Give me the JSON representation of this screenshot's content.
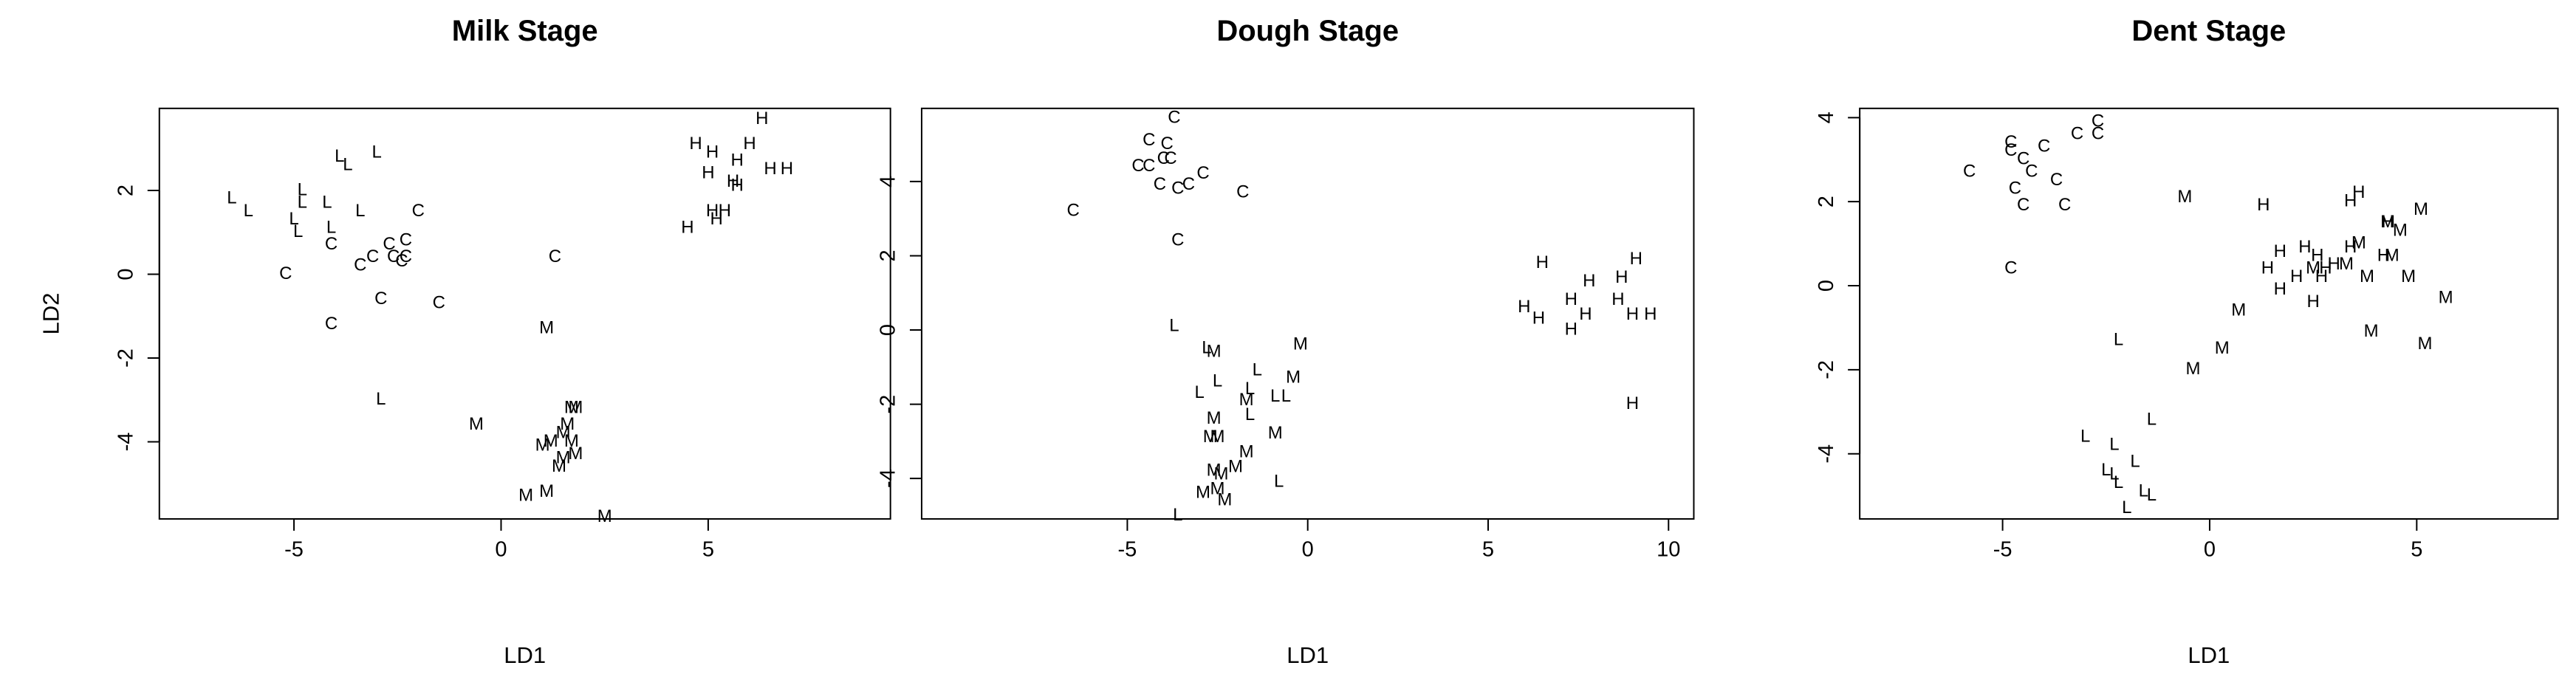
{
  "chart_data": [
    {
      "type": "scatter",
      "title": "Milk Stage",
      "xlabel": "LD1",
      "ylabel": "LD2",
      "xlim": [
        -8.25,
        9.4
      ],
      "ylim": [
        -5.84,
        3.96
      ],
      "xticks": [
        -5,
        0,
        5
      ],
      "yticks": [
        -4,
        -2,
        0,
        2
      ],
      "series": [
        {
          "name": "L",
          "color": "#000000",
          "x": [
            -6.5,
            -6.1,
            -4.8,
            -4.8,
            -5.0,
            -4.9,
            -4.2,
            -4.1,
            -3.9,
            -3.7,
            -3.4,
            -3.0,
            -2.9
          ],
          "y": [
            1.8,
            1.5,
            2.0,
            1.7,
            1.3,
            1.0,
            1.7,
            1.1,
            2.8,
            2.6,
            1.5,
            2.9,
            -3.0
          ]
        },
        {
          "name": "C",
          "color": "#000000",
          "x": [
            -5.2,
            -4.1,
            -4.1,
            -3.4,
            -3.1,
            -2.7,
            -2.6,
            -2.4,
            -2.3,
            -2.3,
            -2.0,
            -2.9,
            -1.5,
            1.3
          ],
          "y": [
            0.0,
            -1.2,
            0.7,
            0.2,
            0.4,
            0.7,
            0.4,
            0.3,
            0.8,
            0.4,
            1.5,
            -0.6,
            -0.7,
            0.4
          ]
        },
        {
          "name": "H",
          "color": "#000000",
          "x": [
            4.7,
            5.1,
            5.7,
            6.0,
            6.3,
            6.5,
            6.9,
            5.0,
            5.6,
            5.7,
            4.5,
            5.1,
            5.4,
            5.2
          ],
          "y": [
            3.1,
            2.9,
            2.7,
            3.1,
            3.7,
            2.5,
            2.5,
            2.4,
            2.2,
            2.1,
            1.1,
            1.5,
            1.5,
            1.3
          ]
        },
        {
          "name": "M",
          "color": "#000000",
          "x": [
            1.1,
            -0.6,
            1.0,
            1.2,
            1.5,
            1.7,
            1.8,
            1.6,
            1.7,
            1.8,
            1.4,
            1.5,
            0.6,
            1.1,
            2.5
          ],
          "y": [
            -1.3,
            -3.6,
            -4.1,
            -4.0,
            -3.8,
            -3.2,
            -3.2,
            -3.6,
            -4.0,
            -4.3,
            -4.6,
            -4.4,
            -5.3,
            -5.2,
            -5.8
          ]
        }
      ]
    },
    {
      "type": "scatter",
      "title": "Dough Stage",
      "xlabel": "LD1",
      "xlim": [
        -10.7,
        10.7
      ],
      "ylim": [
        -5.09,
        5.97
      ],
      "xticks": [
        -5,
        0,
        5,
        10
      ],
      "yticks": [
        -4,
        -2,
        0,
        2,
        4
      ],
      "series": [
        {
          "name": "C",
          "color": "#000000",
          "x": [
            -3.7,
            -4.4,
            -3.9,
            -4.7,
            -4.4,
            -4.0,
            -3.8,
            -4.1,
            -3.6,
            -3.3,
            -2.9,
            -1.8,
            -6.5,
            -3.6
          ],
          "y": [
            5.7,
            5.1,
            5.0,
            4.4,
            4.4,
            4.6,
            4.6,
            3.9,
            3.8,
            3.9,
            4.2,
            3.7,
            3.2,
            2.4
          ]
        },
        {
          "name": "L",
          "color": "#000000",
          "x": [
            -3.7,
            -2.8,
            -1.4,
            -2.5,
            -3.0,
            -1.6,
            -0.9,
            -0.6,
            -1.6,
            -0.8,
            -3.6
          ],
          "y": [
            0.1,
            -0.5,
            -1.1,
            -1.4,
            -1.7,
            -1.6,
            -1.8,
            -1.8,
            -2.3,
            -4.1,
            -5.0
          ]
        },
        {
          "name": "M",
          "color": "#000000",
          "x": [
            -2.6,
            -0.2,
            -0.4,
            -1.7,
            -2.6,
            -2.7,
            -2.5,
            -0.9,
            -1.7,
            -2.0,
            -2.6,
            -2.4,
            -2.9,
            -2.5,
            -2.3
          ],
          "y": [
            -0.6,
            -0.4,
            -1.3,
            -1.9,
            -2.4,
            -2.9,
            -2.9,
            -2.8,
            -3.3,
            -3.7,
            -3.8,
            -3.9,
            -4.4,
            -4.3,
            -4.6
          ]
        },
        {
          "name": "H",
          "color": "#000000",
          "x": [
            6.5,
            6.0,
            6.4,
            7.3,
            7.7,
            7.8,
            7.3,
            8.6,
            8.7,
            9.1,
            9.0,
            9.5,
            9.0
          ],
          "y": [
            1.8,
            0.6,
            0.3,
            0.8,
            0.4,
            1.3,
            0.0,
            0.8,
            1.4,
            1.9,
            0.4,
            0.4,
            -2.0
          ]
        }
      ]
    },
    {
      "type": "scatter",
      "title": "Dent Stage",
      "xlabel": "LD1",
      "xlim": [
        -8.45,
        8.41
      ],
      "ylim": [
        -5.55,
        4.22
      ],
      "xticks": [
        -5,
        0,
        5
      ],
      "yticks": [
        -4,
        -2,
        0,
        2,
        4
      ],
      "series": [
        {
          "name": "C",
          "color": "#000000",
          "x": [
            -5.8,
            -4.8,
            -4.8,
            -4.5,
            -4.0,
            -4.3,
            -4.7,
            -4.5,
            -3.7,
            -3.5,
            -3.2,
            -2.7,
            -2.7,
            -4.8
          ],
          "y": [
            2.7,
            3.4,
            3.2,
            3.0,
            3.3,
            2.7,
            2.3,
            1.9,
            2.5,
            1.9,
            3.6,
            3.9,
            3.6,
            0.4
          ]
        },
        {
          "name": "M",
          "color": "#000000",
          "x": [
            -0.6,
            3.3,
            3.6,
            3.8,
            4.3,
            4.4,
            4.6,
            4.8,
            5.1,
            5.7,
            3.9,
            5.2,
            0.3,
            -0.4,
            0.7,
            2.5
          ],
          "y": [
            2.1,
            0.5,
            1.0,
            0.2,
            1.5,
            0.7,
            1.3,
            0.2,
            1.8,
            -0.3,
            -1.1,
            -1.4,
            -1.5,
            -2.0,
            -0.6,
            0.4
          ]
        },
        {
          "name": "H",
          "color": "#000000",
          "x": [
            1.3,
            1.4,
            1.7,
            2.1,
            2.3,
            2.6,
            2.7,
            2.8,
            3.0,
            3.4,
            3.4,
            3.6,
            2.5,
            1.7,
            4.2,
            4.3
          ],
          "y": [
            1.9,
            0.4,
            0.8,
            0.2,
            0.9,
            0.7,
            0.2,
            0.4,
            0.5,
            0.9,
            2.0,
            2.2,
            -0.4,
            -0.1,
            0.7,
            1.5
          ]
        },
        {
          "name": "L",
          "color": "#000000",
          "x": [
            -2.2,
            -1.4,
            -3.0,
            -2.3,
            -1.8,
            -2.5,
            -2.3,
            -2.2,
            -1.6,
            -1.4,
            -2.0
          ],
          "y": [
            -1.3,
            -3.2,
            -3.6,
            -3.8,
            -4.2,
            -4.4,
            -4.5,
            -4.7,
            -4.9,
            -5.0,
            -5.3
          ]
        }
      ]
    }
  ]
}
